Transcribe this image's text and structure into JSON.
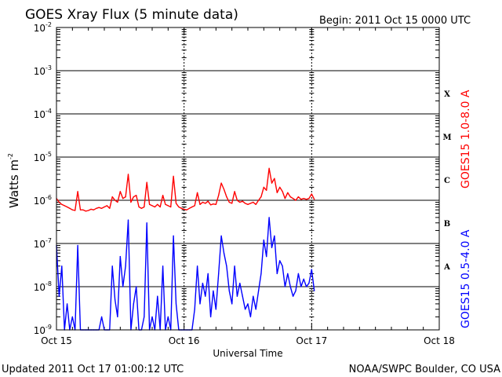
{
  "chart_data": {
    "type": "line",
    "title": "GOES Xray Flux (5 minute data)",
    "begin_label": "Begin:  2011 Oct 15 0000 UTC",
    "xlabel": "Universal Time",
    "ylabel": {
      "base": "Watts m",
      "exponent": "-2"
    },
    "y_scale": "log",
    "ylim": [
      1e-09,
      0.01
    ],
    "y_ticks": [
      {
        "value": 0.01,
        "base": "10",
        "exp": "-2"
      },
      {
        "value": 0.001,
        "base": "10",
        "exp": "-3"
      },
      {
        "value": 0.0001,
        "base": "10",
        "exp": "-4"
      },
      {
        "value": 1e-05,
        "base": "10",
        "exp": "-5"
      },
      {
        "value": 1e-06,
        "base": "10",
        "exp": "-6"
      },
      {
        "value": 1e-07,
        "base": "10",
        "exp": "-7"
      },
      {
        "value": 1e-08,
        "base": "10",
        "exp": "-8"
      },
      {
        "value": 1e-09,
        "base": "10",
        "exp": "-9"
      }
    ],
    "x_unit": "hours since 2011 Oct 15 0000 UTC",
    "xlim": [
      0,
      72
    ],
    "x_ticks": [
      {
        "value": 0,
        "label": "Oct 15"
      },
      {
        "value": 24,
        "label": "Oct 16"
      },
      {
        "value": 48,
        "label": "Oct 17"
      },
      {
        "value": 72,
        "label": "Oct 18"
      }
    ],
    "grid_lines": [
      0.001,
      0.0001,
      1e-05,
      1e-06,
      1e-07,
      1e-08
    ],
    "flare_classes": [
      {
        "label": "X",
        "value": 0.0003
      },
      {
        "label": "M",
        "value": 3e-05
      },
      {
        "label": "C",
        "value": 3e-06
      },
      {
        "label": "B",
        "value": 3e-07
      },
      {
        "label": "A",
        "value": 3e-08
      }
    ],
    "series": [
      {
        "name": "GOES15 1.0-8.0 A",
        "color": "#ff0000",
        "x": [
          0,
          0.5,
          1,
          1.5,
          2,
          2.5,
          3,
          3.5,
          4,
          4.5,
          5,
          5.5,
          6,
          6.5,
          7,
          7.5,
          8,
          8.5,
          9,
          9.5,
          10,
          10.5,
          11,
          11.5,
          12,
          12.5,
          13,
          13.5,
          14,
          14.5,
          15,
          15.5,
          16,
          16.5,
          17,
          17.5,
          18,
          18.5,
          19,
          19.5,
          20,
          20.5,
          21,
          21.5,
          22,
          22.5,
          23,
          23.5,
          24,
          24.5,
          25,
          25.5,
          26,
          26.5,
          27,
          27.5,
          28,
          28.5,
          29,
          29.5,
          30,
          30.5,
          31,
          31.5,
          32,
          32.5,
          33,
          33.5,
          34,
          34.5,
          35,
          35.5,
          36,
          36.5,
          37,
          37.5,
          38,
          38.5,
          39,
          39.5,
          40,
          40.5,
          41,
          41.5,
          42,
          42.5,
          43,
          43.5,
          44,
          44.5,
          45,
          45.5,
          46,
          46.5,
          47,
          47.5,
          48,
          48.5
        ],
        "y": [
          1.1e-06,
          9e-07,
          8e-07,
          7.5e-07,
          7e-07,
          6.5e-07,
          6e-07,
          5.8e-07,
          1.6e-06,
          6e-07,
          6e-07,
          5.6e-07,
          5.8e-07,
          6.2e-07,
          6e-07,
          6.5e-07,
          6.8e-07,
          6.5e-07,
          7e-07,
          7.5e-07,
          6.5e-07,
          1.2e-06,
          1e-06,
          9e-07,
          1.6e-06,
          1.1e-06,
          1.2e-06,
          4e-06,
          9e-07,
          1.2e-06,
          1.3e-06,
          7e-07,
          6.5e-07,
          7e-07,
          2.6e-06,
          8e-07,
          7.5e-07,
          7e-07,
          8e-07,
          7e-07,
          1.3e-06,
          8e-07,
          7.5e-07,
          7e-07,
          3.6e-06,
          8.5e-07,
          7e-07,
          6.5e-07,
          6.2e-07,
          6e-07,
          6.5e-07,
          7e-07,
          7.5e-07,
          1.5e-06,
          8e-07,
          9e-07,
          8.5e-07,
          9.5e-07,
          7.8e-07,
          8.2e-07,
          8e-07,
          1.3e-06,
          2.5e-06,
          1.8e-06,
          1.2e-06,
          9e-07,
          8.5e-07,
          1.6e-06,
          1e-06,
          9e-07,
          9.5e-07,
          8.5e-07,
          8e-07,
          8.5e-07,
          9e-07,
          8e-07,
          1e-06,
          1.2e-06,
          2e-06,
          1.7e-06,
          5.5e-06,
          2.5e-06,
          3.2e-06,
          1.5e-06,
          2e-06,
          1.6e-06,
          1.1e-06,
          1.5e-06,
          1.2e-06,
          1.1e-06,
          1e-06,
          1.2e-06,
          1.05e-06,
          1.1e-06,
          1.05e-06,
          1.1e-06,
          1.4e-06,
          1.05e-06
        ]
      },
      {
        "name": "GOES15 0.5-4.0 A",
        "color": "#0000ff",
        "x": [
          0,
          0.5,
          1,
          1.5,
          2,
          2.5,
          3,
          3.5,
          4,
          4.5,
          5,
          5.5,
          6,
          6.5,
          7,
          7.5,
          8,
          8.5,
          9,
          9.5,
          10,
          10.5,
          11,
          11.5,
          12,
          12.5,
          13,
          13.5,
          14,
          14.5,
          15,
          15.5,
          16,
          16.5,
          17,
          17.5,
          18,
          18.5,
          19,
          19.5,
          20,
          20.5,
          21,
          21.5,
          22,
          22.5,
          23,
          23.5,
          24,
          24.5,
          25,
          25.5,
          26,
          26.5,
          27,
          27.5,
          28,
          28.5,
          29,
          29.5,
          30,
          30.5,
          31,
          31.5,
          32,
          32.5,
          33,
          33.5,
          34,
          34.5,
          35,
          35.5,
          36,
          36.5,
          37,
          37.5,
          38,
          38.5,
          39,
          39.5,
          40,
          40.5,
          41,
          41.5,
          42,
          42.5,
          43,
          43.5,
          44,
          44.5,
          45,
          45.5,
          46,
          46.5,
          47,
          47.5,
          48,
          48.5
        ],
        "y": [
          9e-08,
          6e-09,
          3e-08,
          1e-09,
          4e-09,
          1e-09,
          2e-09,
          1e-09,
          9e-08,
          1e-09,
          1e-09,
          1e-09,
          1e-09,
          1e-09,
          1e-09,
          1e-09,
          1e-09,
          2e-09,
          1e-09,
          1e-09,
          1e-09,
          3e-08,
          5e-09,
          2e-09,
          5e-08,
          1e-08,
          3e-08,
          3.5e-07,
          1e-09,
          4e-09,
          1e-08,
          1e-09,
          1e-09,
          2e-09,
          3e-07,
          1e-09,
          2e-09,
          1e-09,
          6e-09,
          1e-09,
          3e-08,
          1e-09,
          2e-09,
          1e-09,
          1.5e-07,
          4e-09,
          1e-09,
          1e-09,
          1e-09,
          1e-09,
          1e-09,
          1e-09,
          3e-09,
          3e-08,
          4e-09,
          1.2e-08,
          6e-09,
          2e-08,
          2e-09,
          8e-09,
          3e-09,
          2e-08,
          1.5e-07,
          6e-08,
          3e-08,
          8e-09,
          4e-09,
          3e-08,
          6e-09,
          1.2e-08,
          6e-09,
          3e-09,
          4e-09,
          2e-09,
          6e-09,
          3e-09,
          8e-09,
          2e-08,
          1.2e-07,
          5e-08,
          4e-07,
          8e-08,
          1.5e-07,
          2e-08,
          4e-08,
          3e-08,
          1e-08,
          2e-08,
          1e-08,
          6e-09,
          8e-09,
          2e-08,
          1e-08,
          1.5e-08,
          1e-08,
          1.2e-08,
          2.5e-08,
          8e-09
        ]
      }
    ]
  },
  "footer": {
    "updated": "Updated 2011 Oct 17 01:00:12 UTC",
    "credit": "NOAA/SWPC Boulder, CO USA"
  }
}
